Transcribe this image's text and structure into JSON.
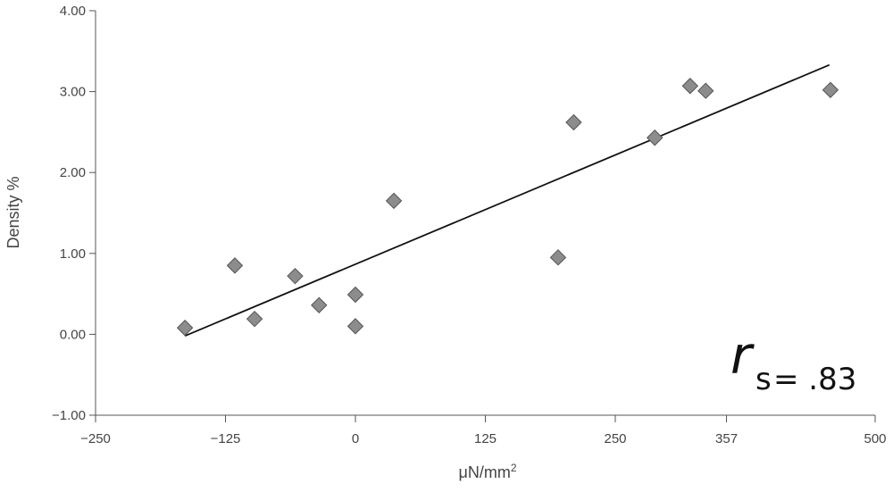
{
  "chart_data": {
    "type": "scatter",
    "xlabel": "μN/mm",
    "xlabel_superscript": "2",
    "ylabel": "Density %",
    "xlim": [
      -250,
      500
    ],
    "ylim": [
      -1.0,
      4.0
    ],
    "x_ticks": [
      -250,
      -125,
      0,
      125,
      250,
      357,
      500
    ],
    "x_tick_labels": [
      "−250",
      "−125",
      "0",
      "125",
      "250",
      "357",
      "500"
    ],
    "y_ticks": [
      -1.0,
      0.0,
      1.0,
      2.0,
      3.0,
      4.0
    ],
    "y_tick_labels": [
      "−1.00",
      "0.00",
      "1.00",
      "2.00",
      "3.00",
      "4.00"
    ],
    "grid": false,
    "marker": "diamond",
    "marker_color": "#8c8c8c",
    "points": [
      {
        "x": -164,
        "y": 0.08
      },
      {
        "x": -116,
        "y": 0.85
      },
      {
        "x": -97,
        "y": 0.19
      },
      {
        "x": -58,
        "y": 0.72
      },
      {
        "x": -35,
        "y": 0.36
      },
      {
        "x": 0,
        "y": 0.49
      },
      {
        "x": 0,
        "y": 0.1
      },
      {
        "x": 37,
        "y": 1.65
      },
      {
        "x": 195,
        "y": 0.95
      },
      {
        "x": 210,
        "y": 2.62
      },
      {
        "x": 288,
        "y": 2.43
      },
      {
        "x": 322,
        "y": 3.07
      },
      {
        "x": 337,
        "y": 3.01
      },
      {
        "x": 457,
        "y": 3.02
      }
    ],
    "trend_line": {
      "x": [
        -164,
        456
      ],
      "y": [
        -0.02,
        3.33
      ],
      "color": "#111111"
    },
    "annotation": {
      "symbol": "r",
      "subscript": "s",
      "text": "= .83"
    }
  }
}
